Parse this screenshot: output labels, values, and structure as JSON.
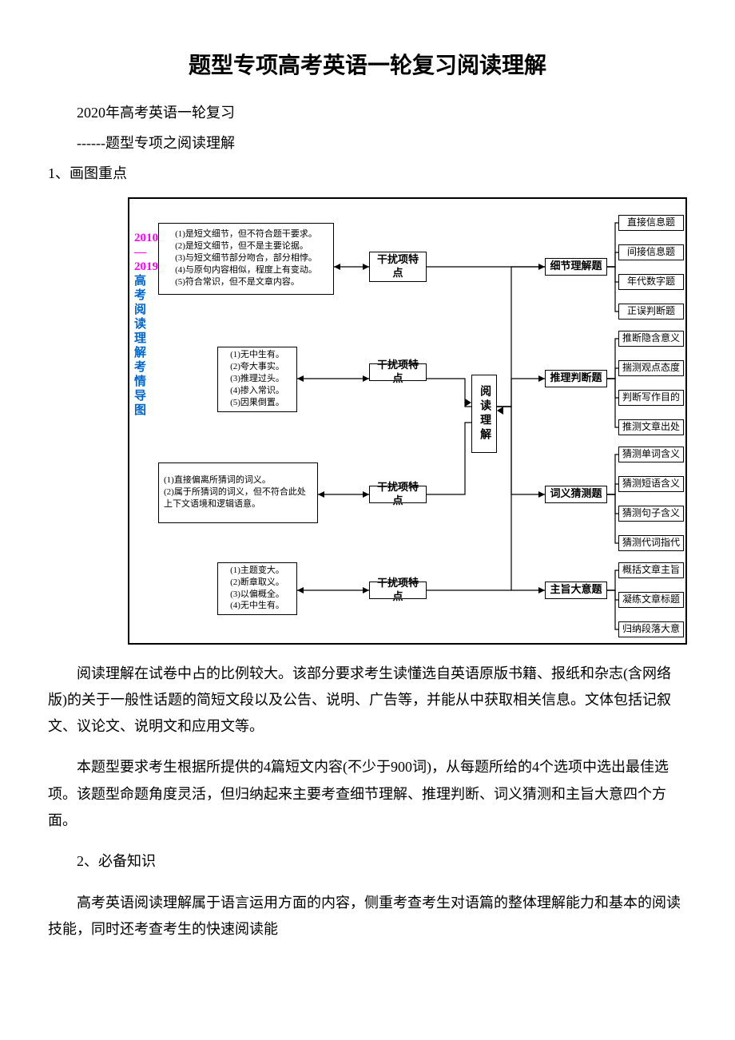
{
  "title": "题型专项高考英语一轮复习阅读理解",
  "subtitle1": "2020年高考英语一轮复习",
  "subtitle2": " ------题型专项之阅读理解",
  "section1": "1、画图重点",
  "diagram": {
    "sideYear": "2010—2019",
    "sideText": "高考阅读理解考情导图",
    "center": "阅读理解",
    "questionTypes": [
      "细节理解题",
      "推理判断题",
      "词义猜测题",
      "主旨大意题"
    ],
    "distractors": [
      "干扰项特点",
      "干扰项特点",
      "干扰项特点",
      "干扰项特点"
    ],
    "leftBoxes": [
      "(1)是短文细节，但不符合题干要求。\n(2)是短文细节，但不是主要论据。\n(3)与短文细节部分吻合，部分相悖。\n(4)与原句内容相似，程度上有变动。\n(5)符合常识，但不是文章内容。",
      "(1)无中生有。\n(2)夸大事实。\n(3)推理过头。\n(4)掺入常识。\n(5)因果倒置。",
      "(1)直接偏离所猜词的词义。\n(2)属于所猜词的词义，但不符合此处上下文语境和逻辑语意。",
      "(1)主题变大。\n(2)断章取义。\n(3)以偏概全。\n(4)无中生有。"
    ],
    "leaves": [
      [
        "直接信息题",
        "间接信息题",
        "年代数字题",
        "正误判断题"
      ],
      [
        "推断隐含意义",
        "揣测观点态度",
        "判断写作目的",
        "推测文章出处"
      ],
      [
        "猜测单词含义",
        "猜测短语含义",
        "猜测句子含义",
        "猜测代词指代"
      ],
      [
        "概括文章主旨",
        "凝练文章标题",
        "归纳段落大意"
      ]
    ]
  },
  "para1": "阅读理解在试卷中占的比例较大。该部分要求考生读懂选自英语原版书籍、报纸和杂志(含网络版)的关于一般性话题的简短文段以及公告、说明、广告等，并能从中获取相关信息。文体包括记叙文、议论文、说明文和应用文等。",
  "para2": "本题型要求考生根据所提供的4篇短文内容(不少于900词)，从每题所给的4个选项中选出最佳选项。该题型命题角度灵活，但归纳起来主要考查细节理解、推理判断、词义猜测和主旨大意四个方面。",
  "section2": "2、必备知识",
  "para3": "高考英语阅读理解属于语言运用方面的内容，侧重考查考生对语篇的整体理解能力和基本的阅读技能，同时还考查考生的快速阅读能"
}
